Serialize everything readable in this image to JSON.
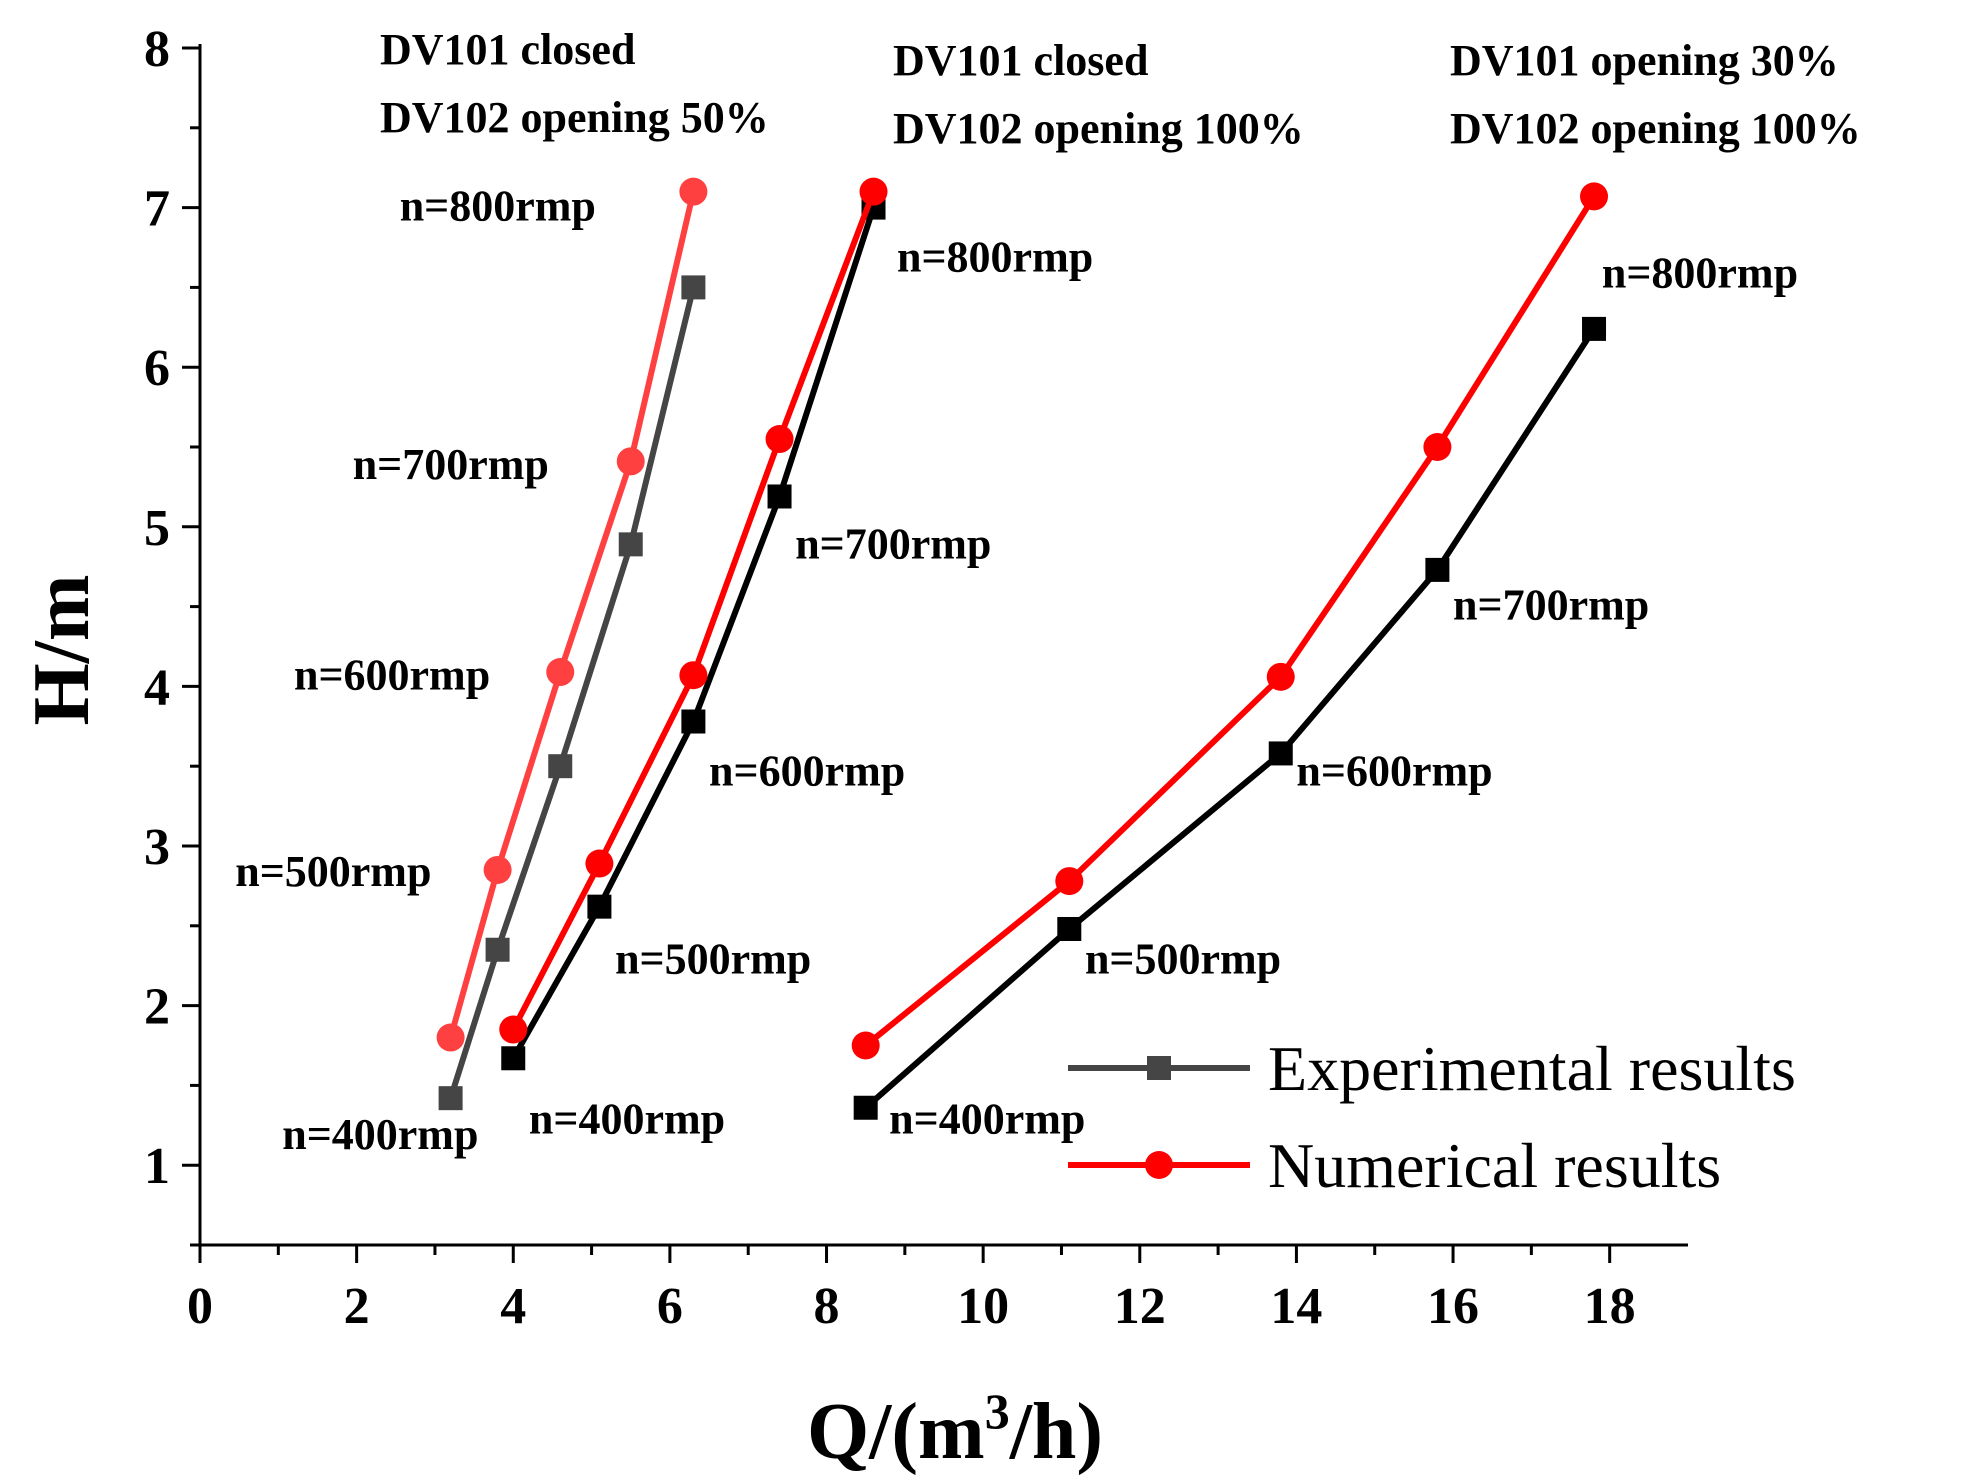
{
  "chart_data": {
    "type": "line",
    "title": "",
    "xlabel": "Q/(m³/h)",
    "xlabel_parts": {
      "base": "Q/(m",
      "sup": "3",
      "tail": "/h)"
    },
    "ylabel": "H/m",
    "xlim": [
      0,
      19
    ],
    "ylim": [
      0.5,
      8
    ],
    "x_ticks": [
      0,
      2,
      4,
      6,
      8,
      10,
      12,
      14,
      16,
      18
    ],
    "y_ticks": [
      1,
      2,
      3,
      4,
      5,
      6,
      7,
      8
    ],
    "legend_position": "bottom-right",
    "legend": [
      "Experimental results",
      "Numerical results"
    ],
    "colors": {
      "experimental_light": "#454545",
      "experimental": "#000000",
      "numerical_light": "#ff4040",
      "numerical": "#ff0000"
    },
    "groups": [
      {
        "condition_lines": [
          "DV101 closed",
          "DV102 opening 50%"
        ],
        "series": [
          {
            "name": "Experimental results",
            "kind": "experimental",
            "color": "#454545",
            "x": [
              3.2,
              3.8,
              4.6,
              5.5,
              6.3
            ],
            "y": [
              1.42,
              2.35,
              3.5,
              4.89,
              6.5
            ]
          },
          {
            "name": "Numerical results",
            "kind": "numerical",
            "color": "#ff4040",
            "x": [
              3.2,
              3.8,
              4.6,
              5.5,
              6.3
            ],
            "y": [
              1.8,
              2.85,
              4.09,
              5.41,
              7.1
            ]
          }
        ],
        "speed_labels": [
          {
            "text": "n=400rmp",
            "at": [
              1.05,
              1.1
            ]
          },
          {
            "text": "n=500rmp",
            "at": [
              0.45,
              2.75
            ]
          },
          {
            "text": "n=600rmp",
            "at": [
              1.2,
              3.98
            ]
          },
          {
            "text": "n=700rmp",
            "at": [
              1.95,
              5.3
            ]
          },
          {
            "text": "n=800rmp",
            "at": [
              2.55,
              6.92
            ]
          }
        ]
      },
      {
        "condition_lines": [
          "DV101 closed",
          "DV102 opening 100%"
        ],
        "series": [
          {
            "name": "Experimental results",
            "kind": "experimental",
            "color": "#000000",
            "x": [
              4.0,
              5.1,
              6.3,
              7.4,
              8.6
            ],
            "y": [
              1.67,
              2.62,
              3.78,
              5.19,
              7.0
            ]
          },
          {
            "name": "Numerical results",
            "kind": "numerical",
            "color": "#ff0000",
            "x": [
              4.0,
              5.1,
              6.3,
              7.4,
              8.6
            ],
            "y": [
              1.85,
              2.89,
              4.07,
              5.55,
              7.1
            ]
          }
        ],
        "speed_labels": [
          {
            "text": "n=400rmp",
            "at": [
              4.2,
              1.2
            ]
          },
          {
            "text": "n=500rmp",
            "at": [
              5.3,
              2.2
            ]
          },
          {
            "text": "n=600rmp",
            "at": [
              6.5,
              3.38
            ]
          },
          {
            "text": "n=700rmp",
            "at": [
              7.6,
              4.8
            ]
          },
          {
            "text": "n=800rmp",
            "at": [
              8.9,
              6.6
            ]
          }
        ]
      },
      {
        "condition_lines": [
          "DV101 opening 30%",
          "DV102 opening 100%"
        ],
        "series": [
          {
            "name": "Experimental results",
            "kind": "experimental",
            "color": "#000000",
            "x": [
              8.5,
              11.1,
              13.8,
              15.8,
              17.8
            ],
            "y": [
              1.36,
              2.48,
              3.58,
              4.73,
              6.24
            ]
          },
          {
            "name": "Numerical results",
            "kind": "numerical",
            "color": "#ff0000",
            "x": [
              8.5,
              11.1,
              13.8,
              15.8,
              17.8
            ],
            "y": [
              1.75,
              2.78,
              4.06,
              5.5,
              7.07
            ]
          }
        ],
        "speed_labels": [
          {
            "text": "n=400rmp",
            "at": [
              8.8,
              1.2
            ]
          },
          {
            "text": "n=500rmp",
            "at": [
              11.3,
              2.2
            ]
          },
          {
            "text": "n=600rmp",
            "at": [
              14.0,
              3.38
            ]
          },
          {
            "text": "n=700rmp",
            "at": [
              16.0,
              4.42
            ]
          },
          {
            "text": "n=800rmp",
            "at": [
              17.9,
              6.5
            ]
          }
        ]
      }
    ]
  }
}
